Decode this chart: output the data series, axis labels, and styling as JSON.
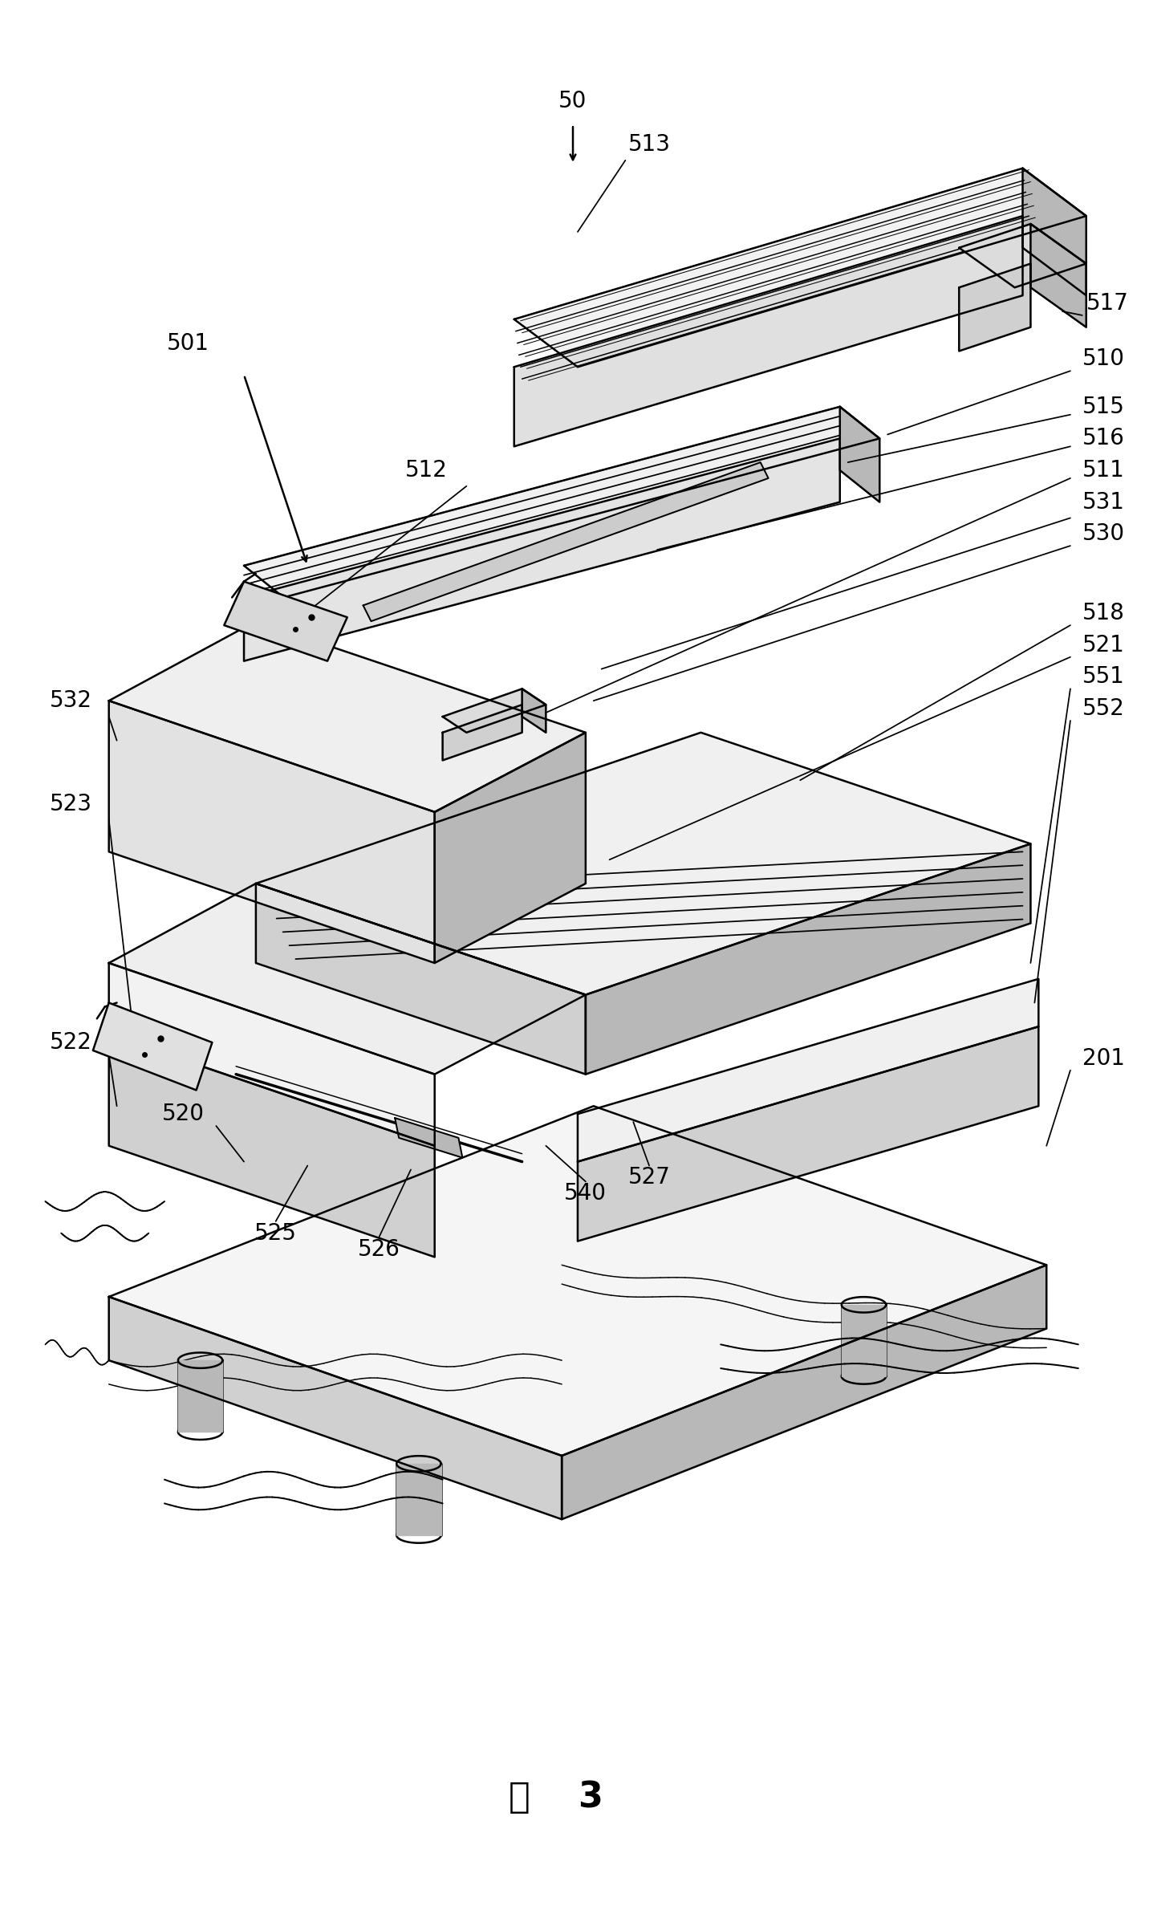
{
  "bg": "#ffffff",
  "lc": "#000000",
  "lw": 1.8,
  "lw_thin": 0.9,
  "lw_thick": 2.5,
  "fs": 20,
  "fig_w": 14.32,
  "fig_h": 24.0,
  "dpi": 100,
  "gray_light": "#e8e8e8",
  "gray_mid": "#d0d0d0",
  "gray_dark": "#b8b8b8",
  "gray_darker": "#a0a0a0"
}
